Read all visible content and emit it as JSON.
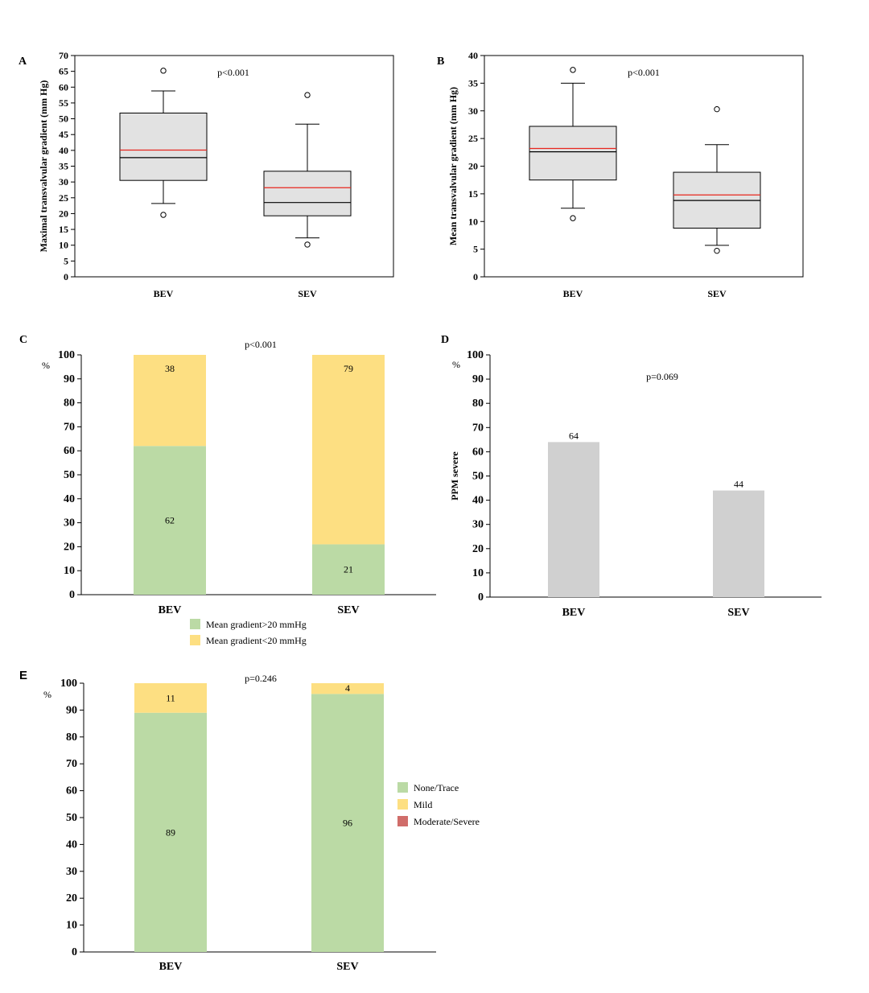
{
  "colors": {
    "green": "#bbdaa5",
    "yellow": "#fddf82",
    "red": "#d06d6a",
    "grey_bar": "#d0d0d0",
    "box_fill": "#e2e2e2",
    "mean_line": "#e8261e"
  },
  "chart_data": [
    {
      "panel": "A",
      "type": "box",
      "ylabel": "Maximal transvalvular gradient  (mm Hg)",
      "ylim": [
        0,
        70
      ],
      "yticks": [
        0,
        5,
        10,
        15,
        20,
        25,
        30,
        35,
        40,
        45,
        50,
        55,
        60,
        65,
        70
      ],
      "categories": [
        "BEV",
        "SEV"
      ],
      "annotation": "p<0.001",
      "boxes": [
        {
          "category": "BEV",
          "whisker_low": 23.2,
          "q1": 30.5,
          "median": 37.7,
          "mean": 40.1,
          "q3": 51.8,
          "whisker_high": 58.8,
          "outliers": [
            65.2,
            19.6
          ]
        },
        {
          "category": "SEV",
          "whisker_low": 12.3,
          "q1": 19.3,
          "median": 23.5,
          "mean": 28.2,
          "q3": 33.4,
          "whisker_high": 48.3,
          "outliers": [
            57.5,
            10.2
          ]
        }
      ]
    },
    {
      "panel": "B",
      "type": "box",
      "ylabel": "Mean transvalvular gradient  (mm Hg)",
      "ylim": [
        0,
        40
      ],
      "yticks": [
        0,
        5,
        10,
        15,
        20,
        25,
        30,
        35,
        40
      ],
      "categories": [
        "BEV",
        "SEV"
      ],
      "annotation": "p<0.001",
      "boxes": [
        {
          "category": "BEV",
          "whisker_low": 12.4,
          "q1": 17.5,
          "median": 22.6,
          "mean": 23.2,
          "q3": 27.2,
          "whisker_high": 35.0,
          "outliers": [
            37.4,
            10.6
          ]
        },
        {
          "category": "SEV",
          "whisker_low": 5.7,
          "q1": 8.8,
          "median": 13.8,
          "mean": 14.8,
          "q3": 18.9,
          "whisker_high": 23.9,
          "outliers": [
            30.3,
            4.7
          ]
        }
      ]
    },
    {
      "panel": "C",
      "type": "bar",
      "stacked": true,
      "unit": "%",
      "ylim": [
        0,
        100
      ],
      "yticks": [
        0,
        10,
        20,
        30,
        40,
        50,
        60,
        70,
        80,
        90,
        100
      ],
      "categories": [
        "BEV",
        "SEV"
      ],
      "annotation": "p<0.001",
      "series": [
        {
          "name": "Mean gradient>20 mmHg",
          "color": "#bbdaa5",
          "values": [
            62,
            21
          ]
        },
        {
          "name": "Mean gradient<20 mmHg",
          "color": "#fddf82",
          "values": [
            38,
            79
          ]
        }
      ],
      "legend_position": "bottom"
    },
    {
      "panel": "D",
      "type": "bar",
      "unit": "%",
      "ylabel": "PPM severe",
      "ylim": [
        0,
        100
      ],
      "yticks": [
        0,
        10,
        20,
        30,
        40,
        50,
        60,
        70,
        80,
        90,
        100
      ],
      "categories": [
        "BEV",
        "SEV"
      ],
      "annotation": "p=0.069",
      "values": [
        64,
        44
      ],
      "color": "#d0d0d0"
    },
    {
      "panel": "E",
      "type": "bar",
      "stacked": true,
      "unit": "%",
      "ylim": [
        0,
        100
      ],
      "yticks": [
        0,
        10,
        20,
        30,
        40,
        50,
        60,
        70,
        80,
        90,
        100
      ],
      "categories": [
        "BEV",
        "SEV"
      ],
      "annotation": "p=0.246",
      "series": [
        {
          "name": "None/Trace",
          "color": "#bbdaa5",
          "values": [
            89,
            96
          ]
        },
        {
          "name": "Mild",
          "color": "#fddf82",
          "values": [
            11,
            4
          ]
        },
        {
          "name": "Moderate/Severe",
          "color": "#d06d6a",
          "values": [
            0,
            0
          ]
        }
      ],
      "legend_position": "right"
    }
  ]
}
